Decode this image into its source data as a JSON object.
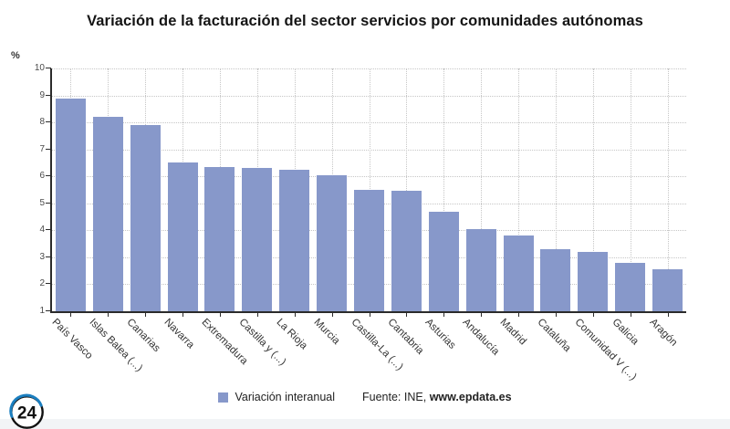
{
  "header": {
    "title": "Variación de la facturación del sector servicios por comunidades autónomas"
  },
  "chart_data": {
    "type": "bar",
    "title": "Variación de la facturación del sector servicios por comunidades autónomas",
    "categories": [
      "País Vasco",
      "Islas Balea (...)",
      "Canarias",
      "Navarra",
      "Extremadura",
      "Castilla y (...)",
      "La Rioja",
      "Murcia",
      "Castilla-La (...)",
      "Cantabria",
      "Asturias",
      "Andalucía",
      "Madrid",
      "Cataluña",
      "Comunidad V (...)",
      "Galicia",
      "Aragón"
    ],
    "values": [
      8.9,
      8.2,
      7.9,
      6.5,
      6.35,
      6.3,
      6.25,
      6.05,
      5.5,
      5.45,
      4.7,
      4.05,
      3.8,
      3.3,
      3.2,
      2.8,
      2.55
    ],
    "series_name": "Variación interanual",
    "xlabel": "",
    "ylabel": "%",
    "ylim": [
      1,
      10
    ],
    "yticks": [
      1,
      2,
      3,
      4,
      5,
      6,
      7,
      8,
      9,
      10
    ],
    "grid": true,
    "legend_position": "bottom",
    "bar_color": "#8798ca"
  },
  "legend": {
    "label": "Variación interanual",
    "marker_color": "#8798ca"
  },
  "footer": {
    "source_prefix": "Fuente: INE,",
    "source_link": "www.epdata.es",
    "logo_text": "24",
    "logo_accent_color": "#1b7fc0"
  }
}
